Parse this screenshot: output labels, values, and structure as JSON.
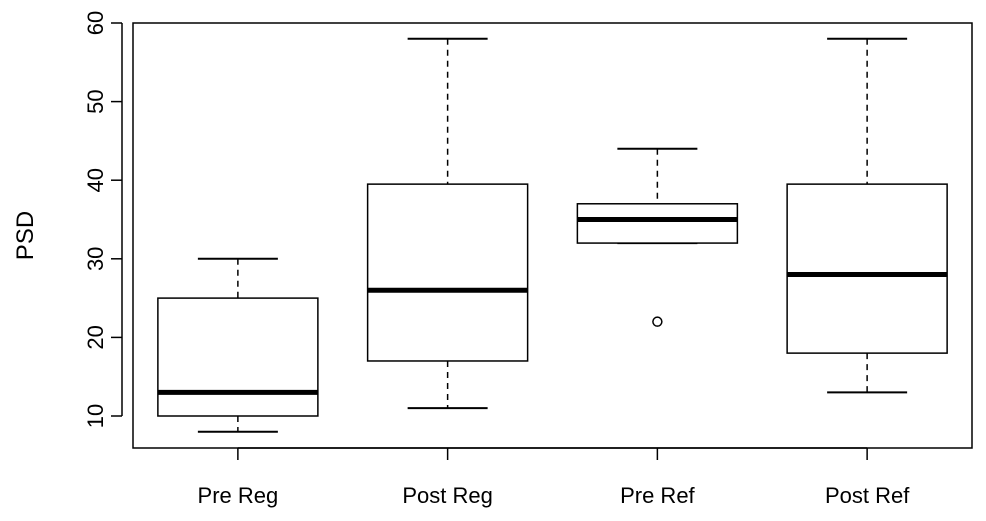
{
  "chart_data": {
    "type": "box",
    "title": "",
    "xlabel": "",
    "ylabel": "PSD",
    "ylim": [
      5,
      60
    ],
    "yticks": [
      10,
      20,
      30,
      40,
      50,
      60
    ],
    "grid": false,
    "categories": [
      "Pre Reg",
      "Post Reg",
      "Pre Ref",
      "Post Ref"
    ],
    "boxes": [
      {
        "category": "Pre Reg",
        "whisker_low": 8,
        "q1": 10,
        "median": 13,
        "q3": 25,
        "whisker_high": 30,
        "outliers": []
      },
      {
        "category": "Post Reg",
        "whisker_low": 11,
        "q1": 17,
        "median": 26,
        "q3": 39.5,
        "whisker_high": 58,
        "outliers": []
      },
      {
        "category": "Pre Ref",
        "whisker_low": 32,
        "q1": 32,
        "median": 35,
        "q3": 37,
        "whisker_high": 44,
        "outliers": [
          22
        ]
      },
      {
        "category": "Post Ref",
        "whisker_low": 13,
        "q1": 18,
        "median": 28,
        "q3": 39.5,
        "whisker_high": 58,
        "outliers": []
      }
    ]
  }
}
